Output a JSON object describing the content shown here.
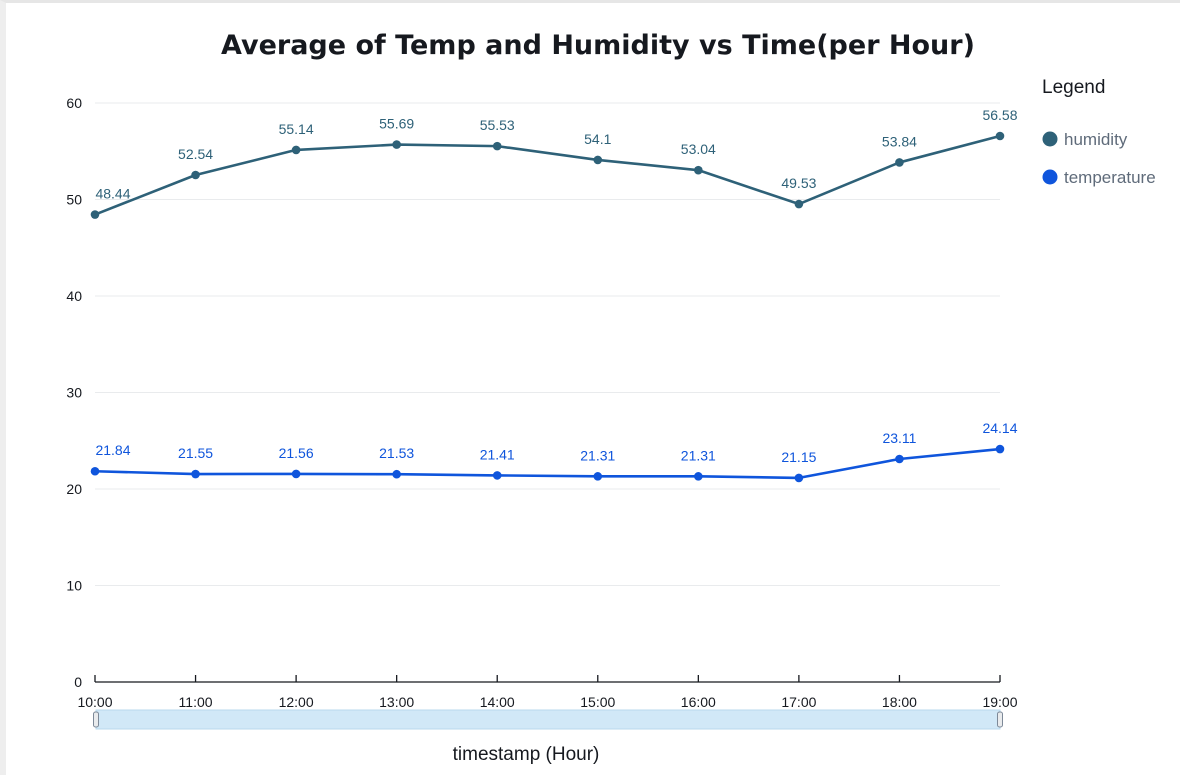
{
  "chart_data": {
    "type": "line",
    "title": "Average of Temp and Humidity vs Time(per Hour)",
    "xlabel": "timestamp (Hour)",
    "ylabel": "",
    "categories": [
      "10:00",
      "11:00",
      "12:00",
      "13:00",
      "14:00",
      "15:00",
      "16:00",
      "17:00",
      "18:00",
      "19:00"
    ],
    "ylim": [
      0,
      60
    ],
    "yticks": [
      0,
      10,
      20,
      30,
      40,
      50,
      60
    ],
    "grid": true,
    "legend": {
      "title": "Legend",
      "placement": "right",
      "entries": [
        "humidity",
        "temperature"
      ]
    },
    "series": [
      {
        "name": "humidity",
        "color": "#2e6178",
        "values": [
          48.44,
          52.54,
          55.14,
          55.69,
          55.53,
          54.1,
          53.04,
          49.53,
          53.84,
          56.58
        ],
        "labels": [
          "48.44",
          "52.54",
          "55.14",
          "55.69",
          "55.53",
          "54.1",
          "53.04",
          "49.53",
          "53.84",
          "56.58"
        ]
      },
      {
        "name": "temperature",
        "color": "#0f55dc",
        "values": [
          21.84,
          21.55,
          21.56,
          21.53,
          21.41,
          21.31,
          21.31,
          21.15,
          23.11,
          24.14
        ],
        "labels": [
          "21.84",
          "21.55",
          "21.56",
          "21.53",
          "21.41",
          "21.31",
          "21.31",
          "21.15",
          "23.11",
          "24.14"
        ]
      }
    ],
    "range_slider": true
  }
}
